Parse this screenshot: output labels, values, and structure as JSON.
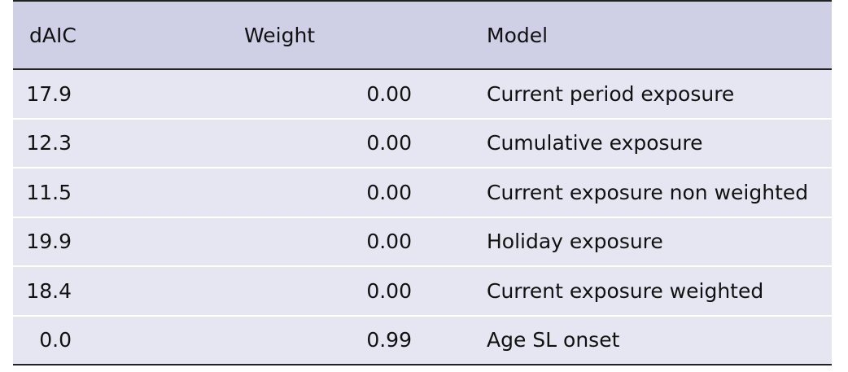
{
  "table": {
    "headers": [
      "dAIC",
      "Weight",
      "Model"
    ],
    "rows": [
      {
        "daic": "17.9",
        "weight": "0.00",
        "model": "Current period exposure"
      },
      {
        "daic": "12.3",
        "weight": "0.00",
        "model": "Cumulative exposure"
      },
      {
        "daic": "11.5",
        "weight": "0.00",
        "model": "Current exposure non weighted"
      },
      {
        "daic": "19.9",
        "weight": "0.00",
        "model": "Holiday exposure"
      },
      {
        "daic": "18.4",
        "weight": "0.00",
        "model": "Current exposure weighted"
      },
      {
        "daic": "0.0",
        "weight": "0.99",
        "model": "Age SL onset"
      }
    ]
  }
}
